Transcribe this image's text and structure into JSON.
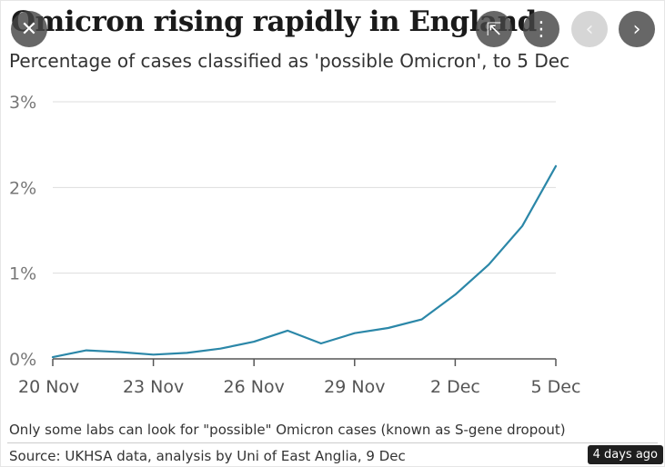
{
  "chart": {
    "title": "Omicron rising rapidly in England",
    "subtitle": "Percentage of cases classified as 'possible Omicron', to 5 Dec",
    "note": "Only some labs can look for \"possible\" Omicron cases (known as S-gene dropout)",
    "source": "Source: UKHSA data, analysis by Uni of East Anglia, 9 Dec"
  },
  "chart_data": {
    "type": "line",
    "title": "Omicron rising rapidly in England",
    "subtitle": "Percentage of cases classified as 'possible Omicron', to 5 Dec",
    "xlabel": "",
    "ylabel": "",
    "x": [
      "20 Nov",
      "21 Nov",
      "22 Nov",
      "23 Nov",
      "24 Nov",
      "25 Nov",
      "26 Nov",
      "27 Nov",
      "28 Nov",
      "29 Nov",
      "30 Nov",
      "1 Dec",
      "2 Dec",
      "3 Dec",
      "4 Dec",
      "5 Dec"
    ],
    "series": [
      {
        "name": "",
        "values": [
          0.02,
          0.1,
          0.08,
          0.05,
          0.07,
          0.12,
          0.2,
          0.33,
          0.18,
          0.3,
          0.36,
          0.46,
          0.75,
          1.1,
          1.55,
          2.25
        ]
      }
    ],
    "ylim": [
      0,
      3
    ],
    "yticks": [
      0,
      1,
      2,
      3
    ],
    "ytick_labels": [
      "0%",
      "1%",
      "2%",
      "3%"
    ],
    "xticks": [
      "20 Nov",
      "23 Nov",
      "26 Nov",
      "29 Nov",
      "2 Dec",
      "5 Dec"
    ],
    "grid": true,
    "line_color": "#2b87a8",
    "grid_color": "#dddddd"
  },
  "controls": {
    "close": "✕",
    "share": "⇱",
    "more": "⋮",
    "prev": "‹",
    "next": "›"
  },
  "badge": {
    "label": "4 days ago"
  }
}
